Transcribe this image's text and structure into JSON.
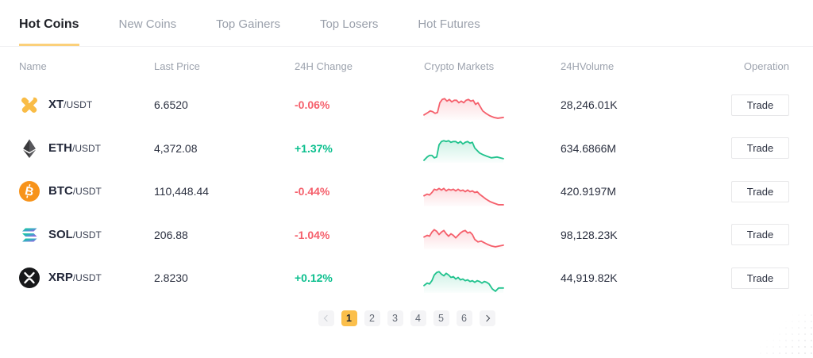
{
  "colors": {
    "up": "#22c38e",
    "down": "#f5606c",
    "accent": "#fbbf4b"
  },
  "tabs": [
    {
      "label": "Hot Coins",
      "active": true
    },
    {
      "label": "New Coins",
      "active": false
    },
    {
      "label": "Top Gainers",
      "active": false
    },
    {
      "label": "Top Losers",
      "active": false
    },
    {
      "label": "Hot Futures",
      "active": false
    }
  ],
  "table": {
    "headers": [
      "Name",
      "Last Price",
      "24H Change",
      "Crypto Markets",
      "24HVolume",
      "Operation"
    ],
    "operation_label": "Trade",
    "rows": [
      {
        "base": "XT",
        "quote": "/USDT",
        "icon": "xt-coin-icon",
        "last_price": "6.6520",
        "change": "-0.06%",
        "trend": "down",
        "volume": "28,246.01K",
        "spark": {
          "trend": "down",
          "points": [
            [
              0,
              30
            ],
            [
              5,
              27
            ],
            [
              8,
              25
            ],
            [
              11,
              26
            ],
            [
              14,
              28
            ],
            [
              17,
              27
            ],
            [
              20,
              15
            ],
            [
              23,
              11
            ],
            [
              26,
              10
            ],
            [
              29,
              13
            ],
            [
              32,
              11
            ],
            [
              35,
              14
            ],
            [
              38,
              12
            ],
            [
              41,
              12
            ],
            [
              44,
              15
            ],
            [
              47,
              13
            ],
            [
              50,
              15
            ],
            [
              53,
              12
            ],
            [
              56,
              11
            ],
            [
              59,
              13
            ],
            [
              62,
              12
            ],
            [
              65,
              17
            ],
            [
              68,
              15
            ],
            [
              71,
              20
            ],
            [
              74,
              25
            ],
            [
              78,
              28
            ],
            [
              83,
              31
            ],
            [
              88,
              33
            ],
            [
              93,
              34
            ],
            [
              100,
              33
            ]
          ]
        }
      },
      {
        "base": "ETH",
        "quote": "/USDT",
        "icon": "eth-coin-icon",
        "last_price": "4,372.08",
        "change": "+1.37%",
        "trend": "up",
        "volume": "634.6866M",
        "spark": {
          "trend": "up",
          "points": [
            [
              0,
              33
            ],
            [
              4,
              29
            ],
            [
              7,
              27
            ],
            [
              10,
              27
            ],
            [
              13,
              30
            ],
            [
              16,
              29
            ],
            [
              19,
              14
            ],
            [
              22,
              10
            ],
            [
              25,
              9
            ],
            [
              28,
              10
            ],
            [
              31,
              9
            ],
            [
              34,
              11
            ],
            [
              37,
              10
            ],
            [
              40,
              10
            ],
            [
              43,
              12
            ],
            [
              46,
              10
            ],
            [
              49,
              13
            ],
            [
              52,
              11
            ],
            [
              55,
              10
            ],
            [
              58,
              12
            ],
            [
              61,
              11
            ],
            [
              64,
              18
            ],
            [
              67,
              21
            ],
            [
              70,
              24
            ],
            [
              74,
              26
            ],
            [
              79,
              28
            ],
            [
              85,
              30
            ],
            [
              92,
              29
            ],
            [
              100,
              31
            ]
          ]
        }
      },
      {
        "base": "BTC",
        "quote": "/USDT",
        "icon": "btc-coin-icon",
        "last_price": "110,448.44",
        "change": "-0.44%",
        "trend": "down",
        "volume": "420.9197M",
        "spark": {
          "trend": "down",
          "points": [
            [
              0,
              23
            ],
            [
              4,
              21
            ],
            [
              7,
              22
            ],
            [
              10,
              19
            ],
            [
              13,
              15
            ],
            [
              16,
              16
            ],
            [
              19,
              14
            ],
            [
              22,
              16
            ],
            [
              25,
              14
            ],
            [
              28,
              17
            ],
            [
              31,
              15
            ],
            [
              34,
              16
            ],
            [
              37,
              15
            ],
            [
              40,
              17
            ],
            [
              43,
              15
            ],
            [
              46,
              17
            ],
            [
              49,
              16
            ],
            [
              52,
              18
            ],
            [
              55,
              16
            ],
            [
              58,
              18
            ],
            [
              61,
              17
            ],
            [
              64,
              19
            ],
            [
              67,
              18
            ],
            [
              70,
              21
            ],
            [
              74,
              24
            ],
            [
              78,
              27
            ],
            [
              83,
              30
            ],
            [
              88,
              32
            ],
            [
              94,
              34
            ],
            [
              100,
              34
            ]
          ]
        }
      },
      {
        "base": "SOL",
        "quote": "/USDT",
        "icon": "sol-coin-icon",
        "last_price": "206.88",
        "change": "-1.04%",
        "trend": "down",
        "volume": "98,128.23K",
        "spark": {
          "trend": "down",
          "points": [
            [
              0,
              21
            ],
            [
              4,
              19
            ],
            [
              7,
              20
            ],
            [
              10,
              15
            ],
            [
              13,
              12
            ],
            [
              16,
              14
            ],
            [
              19,
              18
            ],
            [
              22,
              15
            ],
            [
              25,
              13
            ],
            [
              28,
              17
            ],
            [
              31,
              20
            ],
            [
              34,
              17
            ],
            [
              37,
              19
            ],
            [
              40,
              22
            ],
            [
              43,
              19
            ],
            [
              46,
              16
            ],
            [
              49,
              14
            ],
            [
              52,
              13
            ],
            [
              55,
              16
            ],
            [
              58,
              15
            ],
            [
              61,
              18
            ],
            [
              64,
              24
            ],
            [
              68,
              27
            ],
            [
              72,
              26
            ],
            [
              76,
              28
            ],
            [
              80,
              30
            ],
            [
              85,
              32
            ],
            [
              90,
              33
            ],
            [
              95,
              32
            ],
            [
              100,
              31
            ]
          ]
        }
      },
      {
        "base": "XRP",
        "quote": "/USDT",
        "icon": "xrp-coin-icon",
        "last_price": "2.8230",
        "change": "+0.12%",
        "trend": "up",
        "volume": "44,919.82K",
        "spark": {
          "trend": "up",
          "points": [
            [
              0,
              27
            ],
            [
              4,
              24
            ],
            [
              7,
              25
            ],
            [
              10,
              21
            ],
            [
              13,
              14
            ],
            [
              16,
              11
            ],
            [
              19,
              10
            ],
            [
              22,
              13
            ],
            [
              25,
              15
            ],
            [
              28,
              12
            ],
            [
              31,
              14
            ],
            [
              34,
              17
            ],
            [
              37,
              16
            ],
            [
              40,
              19
            ],
            [
              43,
              17
            ],
            [
              46,
              20
            ],
            [
              49,
              19
            ],
            [
              52,
              21
            ],
            [
              55,
              20
            ],
            [
              58,
              22
            ],
            [
              61,
              21
            ],
            [
              64,
              23
            ],
            [
              67,
              21
            ],
            [
              70,
              22
            ],
            [
              73,
              24
            ],
            [
              76,
              22
            ],
            [
              79,
              23
            ],
            [
              82,
              25
            ],
            [
              86,
              31
            ],
            [
              90,
              34
            ],
            [
              94,
              30
            ],
            [
              100,
              30
            ]
          ]
        }
      }
    ]
  },
  "pagination": {
    "pages": [
      "1",
      "2",
      "3",
      "4",
      "5",
      "6"
    ],
    "active_page": "1"
  }
}
